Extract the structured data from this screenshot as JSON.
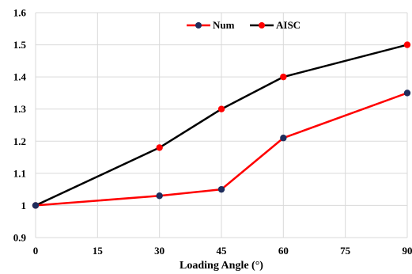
{
  "chart_data": {
    "type": "line",
    "title": "",
    "xlabel": "Loading Angle (°)",
    "ylabel": "",
    "xlim": [
      0,
      90
    ],
    "ylim": [
      0.9,
      1.6
    ],
    "x_ticks": [
      "0",
      "15",
      "30",
      "45",
      "60",
      "75",
      "90"
    ],
    "y_ticks": [
      "0.9",
      "1",
      "1.1",
      "1.2",
      "1.3",
      "1.4",
      "1.5",
      "1.6"
    ],
    "grid": true,
    "legend_position": "top-center",
    "series": [
      {
        "name": "Num",
        "line_color": "#ff0000",
        "marker_color": "#1f2d5c",
        "x": [
          0,
          30,
          45,
          60,
          90
        ],
        "values": [
          1.0,
          1.03,
          1.05,
          1.21,
          1.35
        ]
      },
      {
        "name": "AISC",
        "line_color": "#000000",
        "marker_color": "#ff0000",
        "x": [
          0,
          30,
          45,
          60,
          90
        ],
        "values": [
          1.0,
          1.18,
          1.3,
          1.4,
          1.5
        ]
      }
    ]
  }
}
